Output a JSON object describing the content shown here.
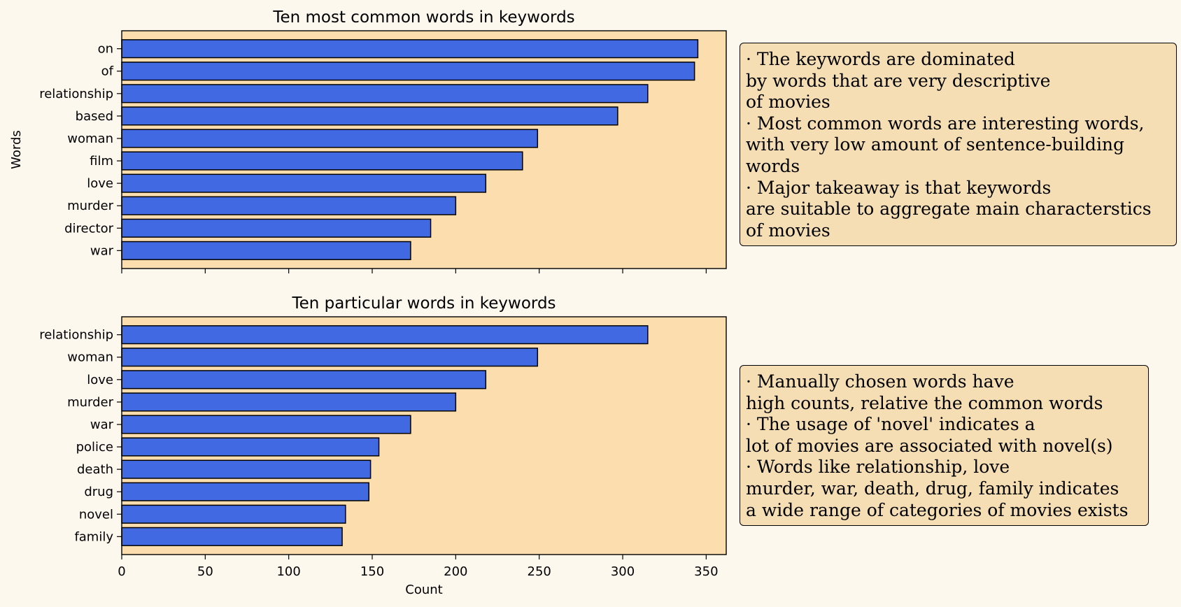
{
  "chart_data": [
    {
      "type": "bar",
      "orientation": "horizontal",
      "title": "Ten most common words in keywords",
      "ylabel": "Words",
      "xlabel": "",
      "categories": [
        "on",
        "of",
        "relationship",
        "based",
        "woman",
        "film",
        "love",
        "murder",
        "director",
        "war"
      ],
      "values": [
        345,
        343,
        315,
        297,
        249,
        240,
        218,
        200,
        185,
        173
      ],
      "xlim": [
        0,
        362
      ],
      "xticks": [
        0,
        50,
        100,
        150,
        200,
        250,
        300,
        350
      ],
      "xticklabels_visible": false
    },
    {
      "type": "bar",
      "orientation": "horizontal",
      "title": "Ten particular words in keywords",
      "ylabel": "",
      "xlabel": "Count",
      "categories": [
        "relationship",
        "woman",
        "love",
        "murder",
        "war",
        "police",
        "death",
        "drug",
        "novel",
        "family"
      ],
      "values": [
        315,
        249,
        218,
        200,
        173,
        154,
        149,
        148,
        134,
        132
      ],
      "xlim": [
        0,
        362
      ],
      "xticks": [
        0,
        50,
        100,
        150,
        200,
        250,
        300,
        350
      ],
      "xticklabels_visible": true
    }
  ],
  "notes": {
    "top": [
      "· The keywords are dominated",
      "by words that are very descriptive",
      "of movies",
      "· Most common words are interesting words,",
      "with very low amount of sentence-building",
      "words",
      "· Major takeaway is that keywords",
      "are suitable to aggregate main characterstics",
      "of movies"
    ],
    "bottom": [
      "· Manually chosen words have",
      "high counts, relative the common words",
      "· The usage of 'novel' indicates a",
      "lot of movies are associated with novel(s)",
      "· Words like relationship, love",
      "murder, war, death, drug, family indicates",
      "a wide range of categories of movies exists"
    ]
  },
  "colors": {
    "figure_background": "#fdf8ee",
    "axes_background": "#fcdeae",
    "bar_fill": "#4169e1",
    "bar_edge": "#000000",
    "note_background": "#f5deb3"
  }
}
